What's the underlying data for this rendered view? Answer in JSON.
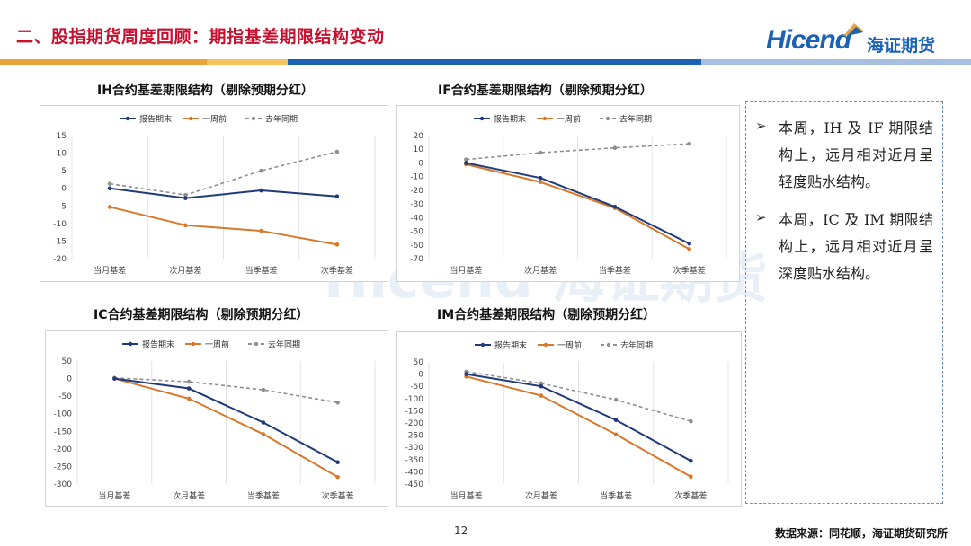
{
  "page": {
    "title": "二、股指期货周度回顾：期指基差期限结构变动",
    "logo_en": "Hicend",
    "logo_cn": "海证期货",
    "page_number": "12",
    "source": "数据来源：同花顺，海证期货研究所",
    "watermark": "Hicend 海证期货"
  },
  "colors": {
    "title": "#c8102e",
    "brand": "#1b62b5",
    "series_report_end": "#1f3a7a",
    "series_one_week_ago": "#d9772b",
    "series_last_year": "#8f8f8f",
    "bar_orange": "#e8a436",
    "bar_blue": "#1b62b5",
    "bar_light": "#a7bfe0"
  },
  "notes": [
    "本周，IH 及 IF 期限结构上，远月相对近月呈轻度贴水结构。",
    "本周，IC 及 IM 期限结构上，远月相对近月呈深度贴水结构。"
  ],
  "chart_data": [
    {
      "type": "line",
      "title": "IH合约基差期限结构（剔除预期分红）",
      "categories": [
        "当月基差",
        "次月基差",
        "当季基差",
        "次季基差"
      ],
      "ylim": [
        -20,
        15
      ],
      "yticks": [
        15,
        10,
        5,
        0,
        -5,
        -10,
        -15,
        -20
      ],
      "grid": "vertical",
      "legend_position": "top",
      "series": [
        {
          "name": "报告期末",
          "values": [
            0,
            -2.8,
            -0.6,
            -2.3
          ]
        },
        {
          "name": "一周前",
          "values": [
            -5.3,
            -10.5,
            -12.1,
            -16
          ]
        },
        {
          "name": "去年同期",
          "values": [
            1.3,
            -1.9,
            5,
            10.4
          ]
        }
      ]
    },
    {
      "type": "line",
      "title": "IF合约基差期限结构（剔除预期分红）",
      "categories": [
        "当月基差",
        "次月基差",
        "当季基差",
        "次季基差"
      ],
      "ylim": [
        -70,
        20
      ],
      "yticks": [
        20,
        10,
        0,
        -10,
        -20,
        -30,
        -40,
        -50,
        -60,
        -70
      ],
      "grid": "vertical",
      "legend_position": "top",
      "series": [
        {
          "name": "报告期末",
          "values": [
            0,
            -11,
            -32,
            -59
          ]
        },
        {
          "name": "一周前",
          "values": [
            -1,
            -14,
            -33,
            -63
          ]
        },
        {
          "name": "去年同期",
          "values": [
            2.5,
            7.5,
            11,
            14
          ]
        }
      ]
    },
    {
      "type": "line",
      "title": "IC合约基差期限结构（剔除预期分红）",
      "categories": [
        "当月基差",
        "次月基差",
        "当季基差",
        "次季基差"
      ],
      "ylim": [
        -300,
        50
      ],
      "yticks": [
        50,
        0,
        -50,
        -100,
        -150,
        -200,
        -250,
        -300
      ],
      "grid": "vertical",
      "legend_position": "top",
      "series": [
        {
          "name": "报告期末",
          "values": [
            0,
            -28,
            -125,
            -238
          ]
        },
        {
          "name": "一周前",
          "values": [
            0,
            -57,
            -158,
            -280
          ]
        },
        {
          "name": "去年同期",
          "values": [
            2,
            -9,
            -32,
            -68
          ]
        }
      ]
    },
    {
      "type": "line",
      "title": "IM合约基差期限结构（剔除预期分红）",
      "categories": [
        "当月基差",
        "次月基差",
        "当季基差",
        "次季基差"
      ],
      "ylim": [
        -450,
        50
      ],
      "yticks": [
        50,
        0,
        -50,
        -100,
        -150,
        -200,
        -250,
        -300,
        -350,
        -400,
        -450
      ],
      "grid": "vertical",
      "legend_position": "top",
      "series": [
        {
          "name": "报告期末",
          "values": [
            0,
            -50,
            -188,
            -355
          ]
        },
        {
          "name": "一周前",
          "values": [
            -10,
            -88,
            -247,
            -420
          ]
        },
        {
          "name": "去年同期",
          "values": [
            10,
            -38,
            -105,
            -193
          ]
        }
      ]
    }
  ]
}
